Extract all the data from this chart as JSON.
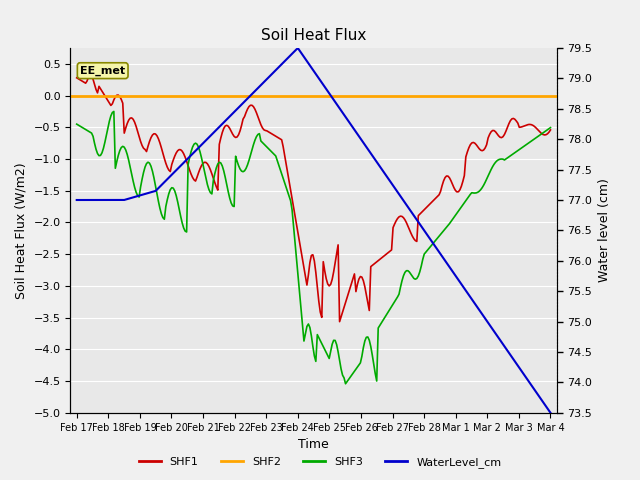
{
  "title": "Soil Heat Flux",
  "xlabel": "Time",
  "ylabel_left": "Soil Heat Flux (W/m2)",
  "ylabel_right": "Water level (cm)",
  "legend_label": "EE_met",
  "ylim_left": [
    -5.0,
    0.75
  ],
  "ylim_right": [
    73.5,
    79.5
  ],
  "background_color": "#f0f0f0",
  "plot_bg_color": "#e8e8e8",
  "grid_color": "#ffffff",
  "shf1_color": "#cc0000",
  "shf2_color": "#ffa500",
  "shf3_color": "#00aa00",
  "water_color": "#0000cc",
  "legend_items": [
    "SHF1",
    "SHF2",
    "SHF3",
    "WaterLevel_cm"
  ],
  "legend_colors": [
    "#cc0000",
    "#ffa500",
    "#00aa00",
    "#0000cc"
  ],
  "xtick_labels": [
    "Feb 17",
    "Feb 18",
    "Feb 19",
    "Feb 20",
    "Feb 21",
    "Feb 22",
    "Feb 23",
    "Feb 24",
    "Feb 25",
    "Feb 26",
    "Feb 27",
    "Feb 28",
    "Mar 1",
    "Mar 2",
    "Mar 3",
    "Mar 4"
  ],
  "n_points": 320,
  "figsize": [
    6.4,
    4.8
  ],
  "dpi": 100
}
